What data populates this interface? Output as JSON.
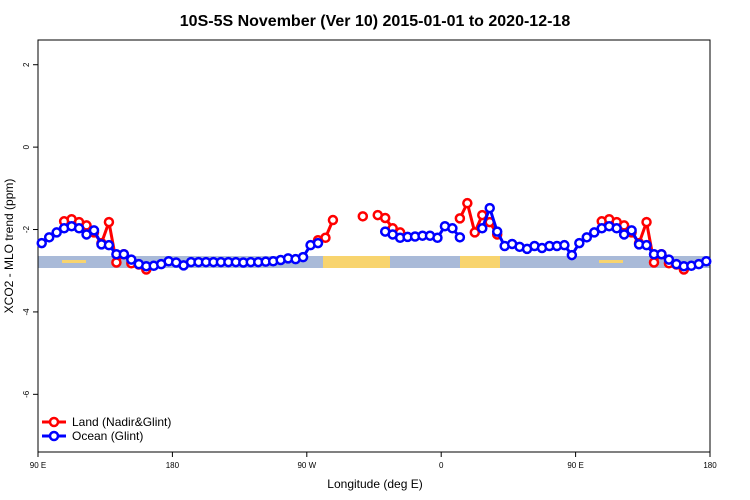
{
  "chart_data": {
    "type": "line",
    "title": "10S-5S November (Ver 10)   2015-01-01 to 2020-12-18",
    "x_label": "Longitude (deg E)",
    "y_label": "XCO2 - MLO trend (ppm)",
    "xlim": [
      90,
      540
    ],
    "ylim": [
      -7.4,
      2.6
    ],
    "xticks": [
      {
        "value": 90,
        "label": "90 E"
      },
      180,
      {
        "value": 270,
        "label": "90 W"
      },
      {
        "value": 360,
        "label": "0"
      },
      {
        "value": 450,
        "label": "90 E"
      },
      {
        "value": 540,
        "label": "180"
      }
    ],
    "yticks": [
      2,
      0,
      -2,
      -4,
      -6
    ],
    "legend": "bottom-left",
    "x": [
      92.5,
      97.5,
      102.5,
      107.5,
      112.5,
      117.5,
      122.5,
      127.5,
      132.5,
      137.5,
      142.5,
      147.5,
      152.5,
      157.5,
      162.5,
      167.5,
      172.5,
      177.5,
      182.5,
      187.5,
      192.5,
      197.5,
      202.5,
      207.5,
      212.5,
      217.5,
      222.5,
      227.5,
      232.5,
      237.5,
      242.5,
      247.5,
      252.5,
      257.5,
      262.5,
      267.5,
      272.5,
      277.5,
      282.5,
      287.5,
      292.5,
      297.5,
      302.5,
      307.5,
      312.5,
      317.5,
      322.5,
      327.5,
      332.5,
      337.5,
      342.5,
      347.5,
      352.5,
      357.5,
      362.5,
      367.5,
      372.5,
      377.5,
      382.5,
      387.5,
      392.5,
      397.5,
      402.5,
      407.5,
      412.5,
      417.5,
      422.5,
      427.5,
      432.5,
      437.5,
      442.5,
      447.5,
      452.5,
      457.5,
      462.5,
      467.5,
      472.5,
      477.5,
      482.5,
      487.5,
      492.5,
      497.5,
      502.5,
      507.5,
      512.5,
      517.5,
      522.5,
      527.5,
      532.5,
      537.5
    ],
    "series": [
      {
        "name": "Land (Nadir&Glint)",
        "color": "#ff0000",
        "values": [
          null,
          null,
          null,
          -1.8,
          -1.75,
          -1.82,
          -1.9,
          -2.07,
          -2.33,
          -1.82,
          -2.8,
          -2.6,
          -2.82,
          -2.85,
          -2.97,
          null,
          null,
          null,
          null,
          null,
          null,
          null,
          null,
          null,
          null,
          null,
          null,
          null,
          null,
          null,
          null,
          null,
          null,
          null,
          null,
          null,
          null,
          -2.26,
          -2.2,
          -1.77,
          null,
          null,
          null,
          -1.68,
          null,
          -1.65,
          -1.72,
          -1.97,
          -2.07,
          null,
          null,
          null,
          null,
          null,
          null,
          null,
          -1.73,
          -1.36,
          -2.07,
          -1.65,
          -1.82,
          -2.12,
          null,
          null,
          null,
          null,
          null,
          null,
          null,
          null,
          null,
          null,
          null,
          null,
          null,
          -1.8,
          -1.75,
          -1.82,
          -1.9,
          -2.07,
          -2.33,
          -1.82,
          -2.8,
          -2.6,
          -2.82,
          -2.85,
          -2.97,
          null,
          null,
          null
        ]
      },
      {
        "name": "Ocean (Glint)",
        "color": "#0000ff",
        "values": [
          -2.33,
          -2.19,
          -2.07,
          -1.97,
          -1.92,
          -1.97,
          -2.12,
          -2.02,
          -2.36,
          -2.38,
          -2.6,
          -2.6,
          -2.73,
          -2.84,
          -2.89,
          -2.88,
          -2.84,
          -2.77,
          -2.8,
          -2.87,
          -2.79,
          -2.79,
          -2.79,
          -2.79,
          -2.79,
          -2.79,
          -2.79,
          -2.8,
          -2.79,
          -2.79,
          -2.78,
          -2.77,
          -2.74,
          -2.7,
          -2.72,
          -2.67,
          -2.38,
          -2.33,
          null,
          null,
          null,
          null,
          null,
          null,
          null,
          null,
          -2.05,
          -2.12,
          -2.2,
          -2.18,
          -2.17,
          -2.15,
          -2.15,
          -2.2,
          -1.92,
          -1.97,
          -2.19,
          null,
          null,
          -1.97,
          -1.48,
          -2.05,
          -2.4,
          -2.35,
          -2.42,
          -2.47,
          -2.4,
          -2.45,
          -2.4,
          -2.4,
          -2.38,
          -2.62,
          -2.33,
          -2.19,
          -2.07,
          -1.97,
          -1.92,
          -1.97,
          -2.12,
          -2.02,
          -2.36,
          -2.38,
          -2.6,
          -2.6,
          -2.73,
          -2.84,
          -2.89,
          -2.88,
          -2.84,
          -2.77
        ]
      }
    ]
  }
}
